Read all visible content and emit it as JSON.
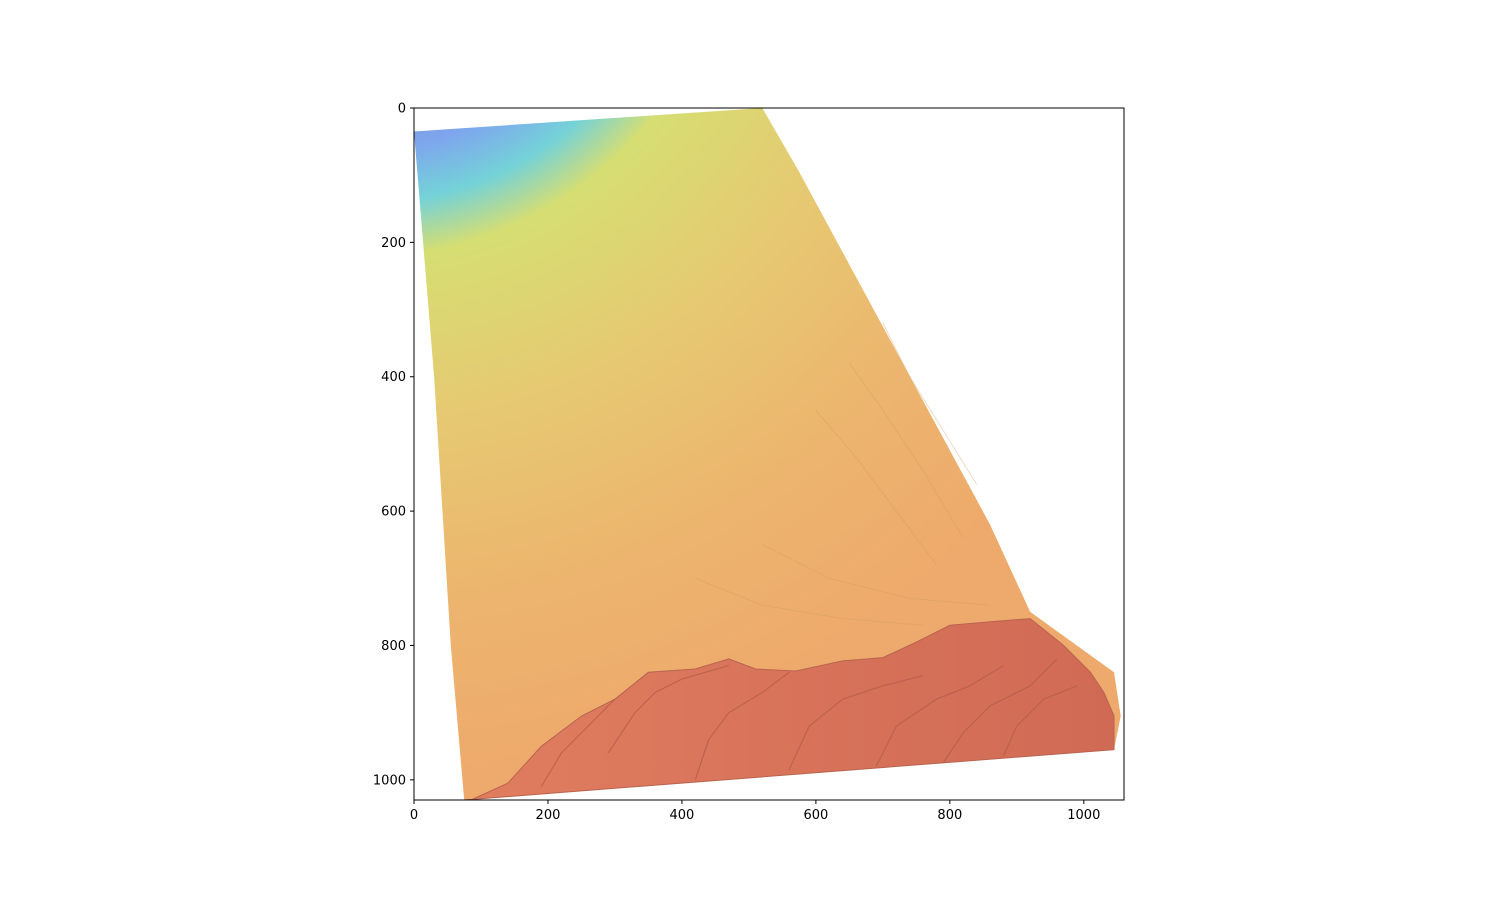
{
  "chart_data": {
    "type": "heatmap",
    "title": "",
    "xlabel": "",
    "ylabel": "",
    "xlim": [
      0,
      1060
    ],
    "ylim": [
      1030,
      0
    ],
    "y_axis_inverted": true,
    "grid": false,
    "colorbar": false,
    "colormap": "turbo (hillshaded, semi-transparent)",
    "x_ticks": [
      0,
      200,
      400,
      600,
      800,
      1000
    ],
    "y_ticks": [
      0,
      200,
      400,
      600,
      800,
      1000
    ],
    "x_tick_labels": [
      "0",
      "200",
      "400",
      "600",
      "800",
      "1000"
    ],
    "y_tick_labels": [
      "0",
      "200",
      "400",
      "600",
      "800",
      "1000"
    ],
    "data_footprint": [
      [
        0,
        35
      ],
      [
        520,
        0
      ],
      [
        575,
        95
      ],
      [
        860,
        620
      ],
      [
        920,
        750
      ],
      [
        1045,
        840
      ],
      [
        1055,
        905
      ],
      [
        1045,
        955
      ],
      [
        75,
        1030
      ],
      [
        55,
        800
      ],
      [
        30,
        400
      ],
      [
        0,
        35
      ]
    ],
    "color_zones": [
      {
        "name": "dark",
        "color": "#6a5a6e"
      },
      {
        "name": "blue",
        "color": "#7ea6ee"
      },
      {
        "name": "cyan",
        "color": "#74ccda"
      },
      {
        "name": "yellow",
        "color": "#d7de72"
      },
      {
        "name": "orange",
        "color": "#eab06d"
      },
      {
        "name": "red",
        "color": "#d8725a"
      }
    ]
  }
}
